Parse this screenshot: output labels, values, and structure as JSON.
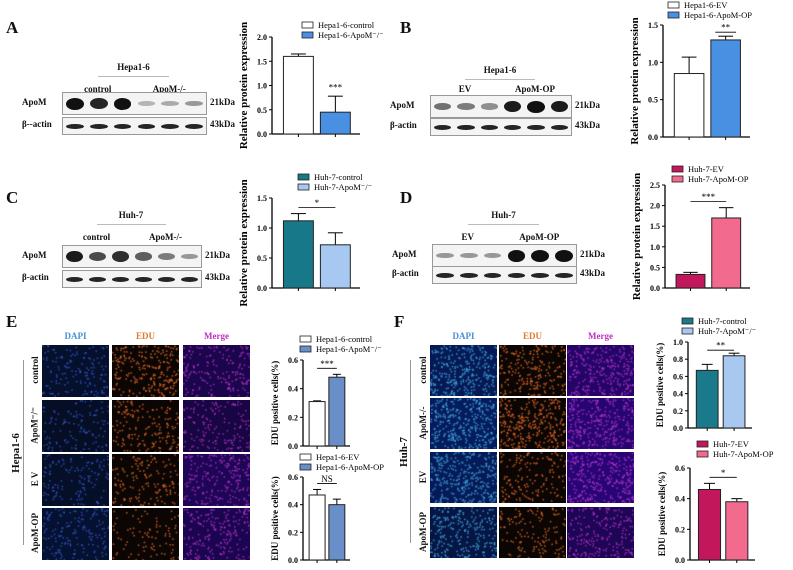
{
  "panels": {
    "A": {
      "letter": "A",
      "cell": "Hepa1-6",
      "groups": [
        "control",
        "ApoM-/-"
      ],
      "rows": [
        "ApoM",
        "β--actin"
      ],
      "sizes": [
        "21kDa",
        "43kDa"
      ]
    },
    "B": {
      "letter": "B",
      "cell": "Hepa1-6",
      "groups": [
        "EV",
        "ApoM-OP"
      ],
      "rows": [
        "ApoM",
        "β-actin"
      ],
      "sizes": [
        "21kDa",
        "43kDa"
      ]
    },
    "C": {
      "letter": "C",
      "cell": "Huh-7",
      "groups": [
        "control",
        "ApoM-/-"
      ],
      "rows": [
        "ApoM",
        "β-actin"
      ],
      "sizes": [
        "21kDa",
        "43kDa"
      ]
    },
    "D": {
      "letter": "D",
      "cell": "Huh-7",
      "groups": [
        "EV",
        "ApoM-OP"
      ],
      "rows": [
        "ApoM",
        "β-actin"
      ],
      "sizes": [
        "21kDa",
        "43kDa"
      ]
    },
    "E": {
      "letter": "E",
      "cell": "Hepa1-6",
      "channels": [
        "DAPI",
        "EDU",
        "Merge"
      ],
      "rows": [
        "control",
        "ApoM⁻/⁻",
        "E V",
        "ApoM-OP"
      ]
    },
    "F": {
      "letter": "F",
      "cell": "Huh-7",
      "channels": [
        "DAPI",
        "EDU",
        "Merge"
      ],
      "rows": [
        "control",
        "ApoM-/-",
        "EV",
        "ApoM-OP"
      ]
    }
  },
  "channel_colors": {
    "DAPI": "#4a8fd8",
    "EDU": "#e07a30",
    "Merge": "#c030c0"
  },
  "chart_data": [
    {
      "id": "A",
      "type": "bar",
      "ylabel": "Relative protein expression",
      "ylim": [
        0,
        2.0
      ],
      "yticks": [
        0,
        0.5,
        1.0,
        1.5,
        2.0
      ],
      "categories": [
        "Hepa1-6-control",
        "Hepa1-6-ApoM⁻/⁻"
      ],
      "values": [
        1.6,
        0.45
      ],
      "errors": [
        0.05,
        0.33
      ],
      "colors": [
        "#ffffff",
        "#4a90e2"
      ],
      "significance": "***",
      "legend": "top"
    },
    {
      "id": "B",
      "type": "bar",
      "ylabel": "Relative protein expression",
      "ylim": [
        0,
        1.5
      ],
      "yticks": [
        0,
        0.5,
        1.0,
        1.5
      ],
      "categories": [
        "Hepa1-6-EV",
        "Hepa1-6-ApoM-OP"
      ],
      "values": [
        0.85,
        1.3
      ],
      "errors": [
        0.22,
        0.05
      ],
      "colors": [
        "#ffffff",
        "#4a90e2"
      ],
      "significance": "**",
      "legend": "top"
    },
    {
      "id": "C",
      "type": "bar",
      "ylabel": "Relative protein expression",
      "ylim": [
        0,
        1.5
      ],
      "yticks": [
        0,
        0.5,
        1.0,
        1.5
      ],
      "categories": [
        "Huh-7-control",
        "Huh-7-ApoM⁻/⁻"
      ],
      "values": [
        1.12,
        0.72
      ],
      "errors": [
        0.12,
        0.2
      ],
      "colors": [
        "#17788a",
        "#a7c8f0"
      ],
      "significance": "*",
      "legend": "top"
    },
    {
      "id": "D",
      "type": "bar",
      "ylabel": "Relative protein expression",
      "ylim": [
        0,
        2.5
      ],
      "yticks": [
        0,
        0.5,
        1.0,
        1.5,
        2.0,
        2.5
      ],
      "categories": [
        "Huh-7-EV",
        "Huh-7-ApoM-OP"
      ],
      "values": [
        0.33,
        1.7
      ],
      "errors": [
        0.05,
        0.25
      ],
      "colors": [
        "#c2185b",
        "#f26b8e"
      ],
      "significance": "***",
      "legend": "top"
    },
    {
      "id": "E1",
      "type": "bar",
      "ylabel": "EDU  positive cells(%)",
      "ylim": [
        0,
        0.6
      ],
      "yticks": [
        0,
        0.2,
        0.4,
        0.6
      ],
      "categories": [
        "Hepa1-6-control",
        "Hepa1-6-ApoM⁻/⁻"
      ],
      "values": [
        0.31,
        0.48
      ],
      "errors": [
        0.005,
        0.02
      ],
      "colors": [
        "#ffffff",
        "#6a8fc8"
      ],
      "significance": "***",
      "legend": "top"
    },
    {
      "id": "E2",
      "type": "bar",
      "ylabel": "EDU  positive cells(%)",
      "ylim": [
        0,
        0.6
      ],
      "yticks": [
        0,
        0.2,
        0.4,
        0.6
      ],
      "categories": [
        "Hepa1-6-EV",
        "Hepa1-6-ApoM-OP"
      ],
      "values": [
        0.47,
        0.4
      ],
      "errors": [
        0.04,
        0.04
      ],
      "colors": [
        "#ffffff",
        "#6a8fc8"
      ],
      "significance": "NS",
      "legend": "top"
    },
    {
      "id": "F1",
      "type": "bar",
      "ylabel": "EDU positive cells(%)",
      "ylim": [
        0,
        1.0
      ],
      "yticks": [
        0,
        0.2,
        0.4,
        0.6,
        0.8,
        1.0
      ],
      "categories": [
        "Huh-7-control",
        "Huh-7-ApoM⁻/⁻"
      ],
      "values": [
        0.67,
        0.84
      ],
      "errors": [
        0.07,
        0.03
      ],
      "colors": [
        "#1a7a8c",
        "#a8c8f0"
      ],
      "significance": "**",
      "legend": "top"
    },
    {
      "id": "F2",
      "type": "bar",
      "ylabel": "EDU positive cells(%)",
      "ylim": [
        0,
        0.6
      ],
      "yticks": [
        0,
        0.2,
        0.4,
        0.6
      ],
      "categories": [
        "Huh-7-EV",
        "Huh-7-ApoM-OP"
      ],
      "values": [
        0.46,
        0.38
      ],
      "errors": [
        0.04,
        0.02
      ],
      "colors": [
        "#c2185b",
        "#f26b8e"
      ],
      "significance": "*",
      "legend": "top"
    }
  ]
}
